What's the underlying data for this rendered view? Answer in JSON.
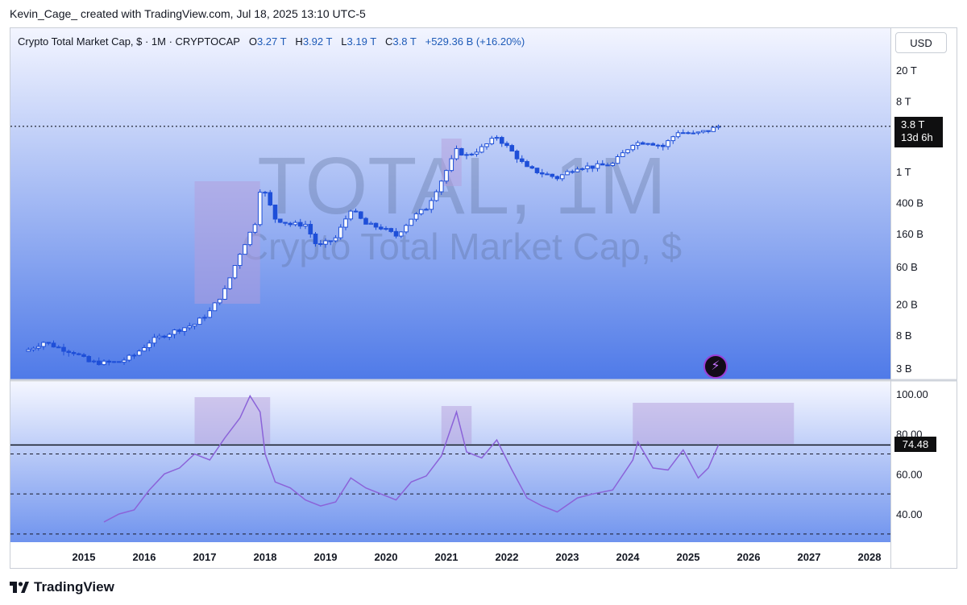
{
  "caption": "Kevin_Cage_ created with TradingView.com, Jul 18, 2025 13:10 UTC-5",
  "legend": {
    "title": "Crypto Total Market Cap, $ · 1M · CRYPTOCAP",
    "o_label": "O",
    "o_value": "3.27 T",
    "h_label": "H",
    "h_value": "3.92 T",
    "l_label": "L",
    "l_value": "3.19 T",
    "c_label": "C",
    "c_value": "3.8 T",
    "change": "+529.36 B (+16.20%)"
  },
  "currency_button": "USD",
  "watermark": {
    "symbol": "TOTAL, 1M",
    "name": "Crypto Total Market Cap, $"
  },
  "price_tag": {
    "price": "3.8 T",
    "countdown": "13d 6h"
  },
  "rsi_tag": "74.48",
  "brand": "TradingView",
  "colors": {
    "candle": "#1e4fd8",
    "rsi_line": "#8b63d9",
    "highlight": "#b39ddb",
    "bg_top": "#f3f5ff",
    "bg_bottom": "#4f7ae8"
  },
  "chart_data": [
    {
      "type": "candlestick",
      "title": "Crypto Total Market Cap, $ · 1M · CRYPTOCAP",
      "y_scale": "log",
      "y_ticks": [
        "20 T",
        "8 T",
        "1 T",
        "400 B",
        "160 B",
        "60 B",
        "20 B",
        "8 B",
        "3 B"
      ],
      "y_tick_values": [
        20000,
        8000,
        1000,
        400,
        160,
        60,
        20,
        8,
        3
      ],
      "x_ticks": [
        "2015",
        "2016",
        "2017",
        "2018",
        "2019",
        "2020",
        "2021",
        "2022",
        "2023",
        "2024",
        "2025",
        "2026",
        "2027",
        "2028"
      ],
      "last_close": 3800,
      "close_series_billions": [
        [
          "2014-02",
          5.2
        ],
        [
          "2014-05",
          6.5
        ],
        [
          "2014-08",
          5.5
        ],
        [
          "2014-11",
          4.8
        ],
        [
          "2015-02",
          3.6
        ],
        [
          "2015-05",
          3.5
        ],
        [
          "2015-08",
          3.6
        ],
        [
          "2015-11",
          4.4
        ],
        [
          "2016-02",
          6.5
        ],
        [
          "2016-05",
          8
        ],
        [
          "2016-08",
          9.5
        ],
        [
          "2016-11",
          11
        ],
        [
          "2017-02",
          16
        ],
        [
          "2017-05",
          30
        ],
        [
          "2017-08",
          90
        ],
        [
          "2017-11",
          220
        ],
        [
          "2017-12",
          580
        ],
        [
          "2018-01",
          520
        ],
        [
          "2018-03",
          250
        ],
        [
          "2018-06",
          210
        ],
        [
          "2018-09",
          210
        ],
        [
          "2018-11",
          120
        ],
        [
          "2018-12",
          112
        ],
        [
          "2019-03",
          140
        ],
        [
          "2019-06",
          330
        ],
        [
          "2019-09",
          210
        ],
        [
          "2019-12",
          190
        ],
        [
          "2020-03",
          150
        ],
        [
          "2020-06",
          250
        ],
        [
          "2020-09",
          340
        ],
        [
          "2020-12",
          770
        ],
        [
          "2021-03",
          1850
        ],
        [
          "2021-05",
          1600
        ],
        [
          "2021-08",
          2000
        ],
        [
          "2021-11",
          2800
        ],
        [
          "2022-02",
          1800
        ],
        [
          "2022-05",
          1100
        ],
        [
          "2022-08",
          950
        ],
        [
          "2022-11",
          830
        ],
        [
          "2023-03",
          1150
        ],
        [
          "2023-06",
          1150
        ],
        [
          "2023-10",
          1250
        ],
        [
          "2024-02",
          2300
        ],
        [
          "2024-05",
          2400
        ],
        [
          "2024-08",
          2100
        ],
        [
          "2024-11",
          3250
        ],
        [
          "2025-02",
          3000
        ],
        [
          "2025-05",
          3350
        ],
        [
          "2025-07",
          3800
        ]
      ],
      "highlight_periods": [
        [
          "2016-11",
          "2017-12"
        ],
        [
          "2020-12",
          "2021-04"
        ]
      ]
    },
    {
      "type": "line",
      "title": "",
      "y_ticks": [
        "100.00",
        "80.00",
        "60.00",
        "40.00"
      ],
      "y_tick_values": [
        100,
        80,
        60,
        40
      ],
      "reference_line": 74.48,
      "dashed_levels": [
        70,
        50,
        30
      ],
      "rsi_series": [
        [
          "2015-05",
          36
        ],
        [
          "2015-08",
          40
        ],
        [
          "2015-11",
          42
        ],
        [
          "2016-02",
          52
        ],
        [
          "2016-05",
          60
        ],
        [
          "2016-08",
          63
        ],
        [
          "2016-11",
          70
        ],
        [
          "2017-02",
          67
        ],
        [
          "2017-05",
          78
        ],
        [
          "2017-08",
          88
        ],
        [
          "2017-10",
          99
        ],
        [
          "2017-12",
          91
        ],
        [
          "2018-01",
          70
        ],
        [
          "2018-03",
          56
        ],
        [
          "2018-06",
          53
        ],
        [
          "2018-09",
          47
        ],
        [
          "2018-12",
          44
        ],
        [
          "2019-03",
          46
        ],
        [
          "2019-06",
          58
        ],
        [
          "2019-09",
          53
        ],
        [
          "2019-12",
          50
        ],
        [
          "2020-03",
          47
        ],
        [
          "2020-06",
          56
        ],
        [
          "2020-09",
          59
        ],
        [
          "2020-12",
          69
        ],
        [
          "2021-03",
          91
        ],
        [
          "2021-05",
          71
        ],
        [
          "2021-08",
          68
        ],
        [
          "2021-11",
          77
        ],
        [
          "2022-02",
          62
        ],
        [
          "2022-05",
          48
        ],
        [
          "2022-08",
          44
        ],
        [
          "2022-11",
          41
        ],
        [
          "2023-03",
          48
        ],
        [
          "2023-06",
          50
        ],
        [
          "2023-10",
          52
        ],
        [
          "2024-02",
          67
        ],
        [
          "2024-03",
          76
        ],
        [
          "2024-06",
          63
        ],
        [
          "2024-09",
          62
        ],
        [
          "2024-12",
          72
        ],
        [
          "2025-03",
          58
        ],
        [
          "2025-05",
          63
        ],
        [
          "2025-07",
          74.48
        ]
      ],
      "highlight_periods": [
        [
          "2016-11",
          "2018-02"
        ],
        [
          "2020-12",
          "2021-06"
        ],
        [
          "2024-02",
          "2026-10"
        ]
      ]
    }
  ]
}
